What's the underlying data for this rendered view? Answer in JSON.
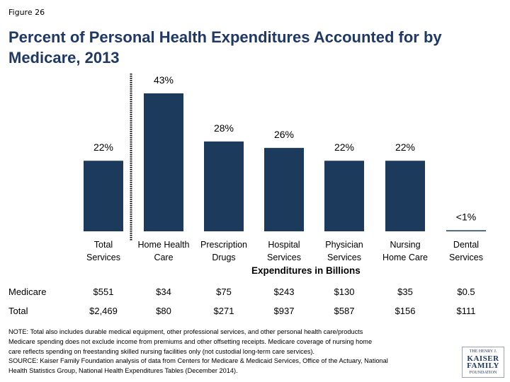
{
  "figure_label": "Figure 26",
  "title": "Percent of Personal Health Expenditures Accounted for by Medicare, 2013",
  "chart_data": {
    "type": "bar",
    "categories": [
      "Total Services",
      "Home Health Care",
      "Prescription Drugs",
      "Hospital Services",
      "Physician Services",
      "Nursing Home Care",
      "Dental Services"
    ],
    "category_lines": [
      [
        "Total",
        "Services"
      ],
      [
        "Home Health",
        "Care"
      ],
      [
        "Prescription",
        "Drugs"
      ],
      [
        "Hospital",
        "Services"
      ],
      [
        "Physician",
        "Services"
      ],
      [
        "Nursing",
        "Home Care"
      ],
      [
        "Dental",
        "Services"
      ]
    ],
    "values": [
      22,
      43,
      28,
      26,
      22,
      22,
      0.3
    ],
    "value_labels": [
      "22%",
      "43%",
      "28%",
      "26%",
      "22%",
      "22%",
      "<1%"
    ],
    "ylim": [
      0,
      45
    ],
    "bar_color": "#1b3a5c",
    "divider": "dotted vertical line between Total Services and other categories"
  },
  "table": {
    "heading": "Expenditures in Billions",
    "rows": [
      {
        "label": "Medicare",
        "values": [
          "$551",
          "$34",
          "$75",
          "$243",
          "$130",
          "$35",
          "$0.5"
        ]
      },
      {
        "label": "Total",
        "values": [
          "$2,469",
          "$80",
          "$271",
          "$937",
          "$587",
          "$156",
          "$111"
        ]
      }
    ]
  },
  "note_lines": [
    "NOTE: Total also includes durable medical equipment, other professional services, and other personal health care/products",
    "Medicare spending does not exclude income from premiums and other offsetting receipts.  Medicare coverage of nursing home",
    "care reflects spending on freestanding skilled nursing facilities only (not custodial long-term care services).",
    "SOURCE: Kaiser Family Foundation analysis of data from Centers for Medicare & Medicaid Services, Office of the Actuary, National",
    "Health Statistics Group, National Health Expenditures Tables (December 2014)."
  ],
  "logo": {
    "line1": "THE HENRY J.",
    "line2": "KAISER",
    "line3": "FAMILY",
    "line4": "FOUNDATION"
  }
}
